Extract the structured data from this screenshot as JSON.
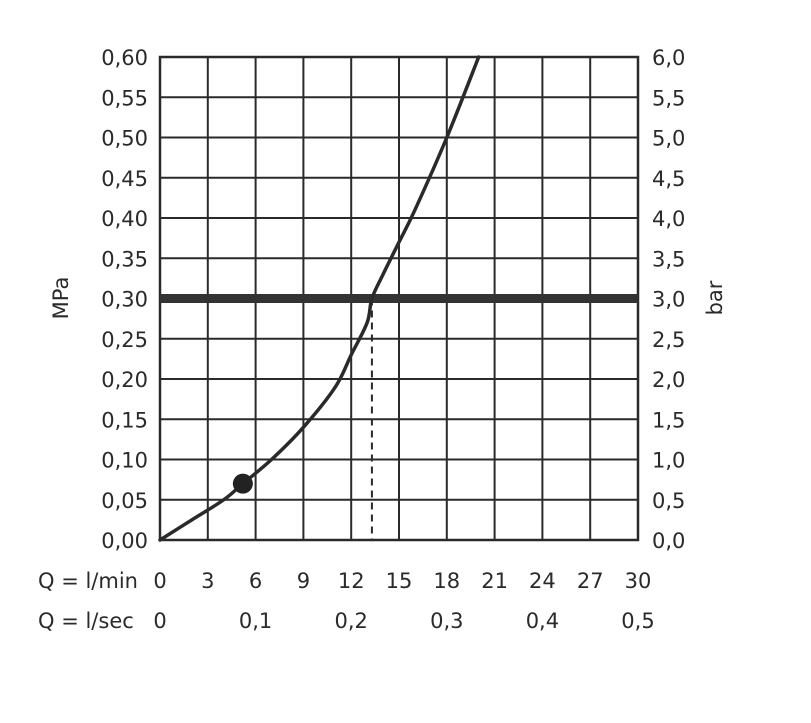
{
  "chart_data": {
    "type": "line",
    "ylabel_left": "MPa",
    "ylabel_right": "bar",
    "x_row_labels": [
      "Q = l/min",
      "Q = l/sec"
    ],
    "x_ticks_lmin": [
      "0",
      "3",
      "6",
      "9",
      "12",
      "15",
      "18",
      "21",
      "24",
      "27",
      "30"
    ],
    "x_ticks_lsec": [
      "0",
      "0,1",
      "0,2",
      "0,3",
      "0,4",
      "0,5"
    ],
    "y_ticks_mpa": [
      "0,00",
      "0,05",
      "0,10",
      "0,15",
      "0,20",
      "0,25",
      "0,30",
      "0,35",
      "0,40",
      "0,45",
      "0,50",
      "0,55",
      "0,60"
    ],
    "y_ticks_bar": [
      "0,0",
      "0,5",
      "1,0",
      "1,5",
      "2,0",
      "2,5",
      "3,0",
      "3,5",
      "4,0",
      "4,5",
      "5,0",
      "5,5",
      "6,0"
    ],
    "xlim": [
      0,
      30
    ],
    "ylim": [
      0,
      0.6
    ],
    "grid": true,
    "series": [
      {
        "x": [
          0,
          2,
          4,
          5.2,
          7,
          9,
          11,
          12,
          13,
          13.3,
          14,
          15,
          16,
          18,
          20
        ],
        "y": [
          0,
          0.025,
          0.05,
          0.07,
          0.1,
          0.14,
          0.19,
          0.23,
          0.27,
          0.3,
          0.33,
          0.37,
          0.41,
          0.5,
          0.6
        ]
      }
    ],
    "marker_point": {
      "x": 5.2,
      "y": 0.07
    },
    "reference_line_y": 0.3,
    "reference_drop_x": 13.3
  }
}
